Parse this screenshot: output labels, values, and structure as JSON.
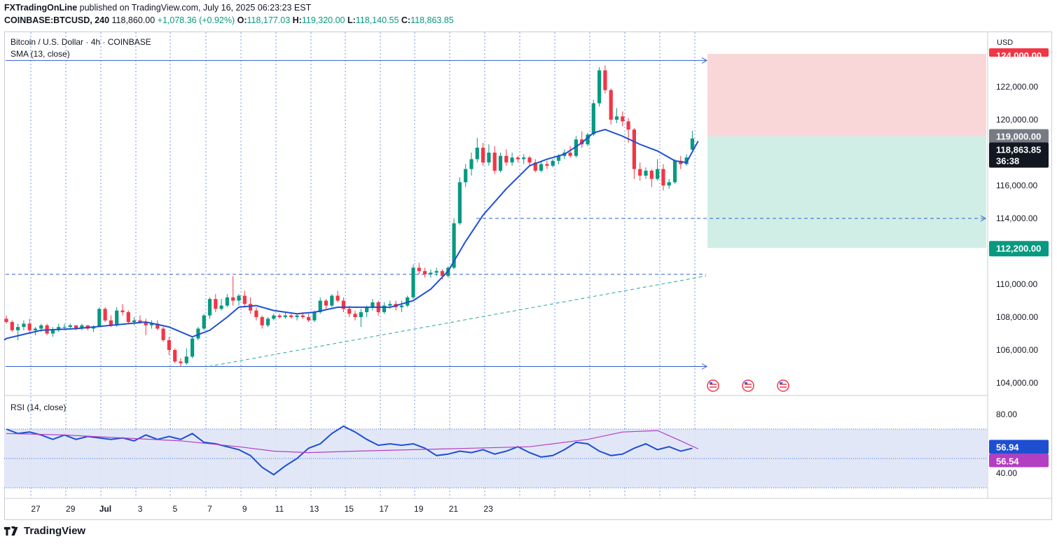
{
  "header": {
    "publisher": "FXTradingOnLine",
    "published_text": "published on TradingView.com, July 16, 2025 06:23:23 EST",
    "symbol": "COINBASE:BTCUSD, 240",
    "last": "118,860.00",
    "change": "+1,078.36 (+0.92%)",
    "o_label": "O:",
    "o": "118,177.03",
    "h_label": "H:",
    "h": "119,320.00",
    "l_label": "L:",
    "l": "118,140.55",
    "c_label": "C:",
    "c": "118,863.85"
  },
  "legend": {
    "symbol_title": "Bitcoin / U.S. Dollar · 4h · COINBASE",
    "sma": "SMA (13, close)",
    "rsi": "RSI (14, close)"
  },
  "footer": {
    "brand": "TradingView"
  },
  "chart_data": {
    "type": "candlestick",
    "currency": "USD",
    "x_ticks": [
      "27",
      "29",
      "Jul",
      "3",
      "5",
      "7",
      "9",
      "11",
      "13",
      "15",
      "17",
      "19",
      "21",
      "23"
    ],
    "price_ticks": [
      "104,000.00",
      "106,000.00",
      "108,000.00",
      "110,000.00",
      "112,000.00",
      "114,000.00",
      "116,000.00",
      "118,000.00",
      "120,000.00",
      "122,000.00",
      "124,000.00"
    ],
    "rsi_ticks": [
      "40.00",
      "60.00",
      "80.00"
    ],
    "price_range": [
      103400,
      124800
    ],
    "rsi_range": [
      30,
      85
    ],
    "rsi_band": [
      30,
      70
    ],
    "rsi_mid": 50,
    "badges": {
      "stop": "124,000.00",
      "entry": "119,000.00",
      "current": "118,863.85",
      "countdown": "36:38",
      "target": "112,200.00",
      "rsi_value": "56.94",
      "rsi_ma_value": "56.54"
    },
    "levels": {
      "stop": 124000,
      "entry": 119000,
      "target": 112200,
      "resistance_high": 123600,
      "dashed_114k": 114000,
      "dashed_110k": 110600,
      "support": 105000
    },
    "trendline": {
      "from": 105000,
      "to": 110500
    },
    "candles": [
      [
        107.9,
        108.1,
        107.6,
        107.7
      ],
      [
        107.7,
        107.8,
        107.1,
        107.2
      ],
      [
        107.2,
        107.6,
        106.6,
        107.4
      ],
      [
        107.4,
        107.8,
        107.2,
        107.6
      ],
      [
        107.6,
        107.9,
        107.0,
        107.2
      ],
      [
        107.2,
        107.4,
        106.9,
        107.3
      ],
      [
        107.3,
        107.6,
        107.1,
        107.5
      ],
      [
        107.5,
        107.6,
        106.9,
        107.0
      ],
      [
        107.0,
        107.4,
        106.8,
        107.2
      ],
      [
        107.2,
        107.6,
        107.1,
        107.4
      ],
      [
        107.4,
        107.6,
        107.2,
        107.4
      ],
      [
        107.4,
        107.6,
        107.3,
        107.5
      ],
      [
        107.5,
        107.5,
        107.2,
        107.3
      ],
      [
        107.3,
        107.6,
        107.2,
        107.5
      ],
      [
        107.5,
        107.5,
        107.2,
        107.3
      ],
      [
        107.3,
        107.5,
        107.1,
        107.4
      ],
      [
        107.4,
        108.6,
        107.4,
        108.5
      ],
      [
        108.5,
        108.6,
        107.7,
        107.8
      ],
      [
        107.8,
        108.1,
        107.4,
        107.5
      ],
      [
        107.5,
        108.6,
        107.4,
        108.4
      ],
      [
        108.4,
        108.8,
        108.1,
        108.3
      ],
      [
        108.3,
        108.4,
        107.6,
        107.7
      ],
      [
        107.7,
        108.0,
        107.5,
        107.8
      ],
      [
        107.8,
        108.1,
        107.6,
        107.7
      ],
      [
        107.7,
        107.9,
        106.9,
        107.5
      ],
      [
        107.5,
        107.8,
        107.3,
        107.6
      ],
      [
        107.6,
        107.8,
        107.2,
        107.3
      ],
      [
        107.3,
        107.4,
        106.5,
        106.6
      ],
      [
        106.6,
        106.8,
        105.7,
        106.0
      ],
      [
        106.0,
        106.1,
        105.2,
        105.3
      ],
      [
        105.3,
        105.5,
        105.0,
        105.2
      ],
      [
        105.2,
        106.1,
        105.1,
        105.6
      ],
      [
        105.6,
        106.8,
        105.5,
        106.7
      ],
      [
        106.7,
        107.4,
        106.6,
        107.3
      ],
      [
        107.3,
        108.2,
        107.2,
        108.1
      ],
      [
        108.1,
        109.2,
        107.9,
        109.1
      ],
      [
        109.1,
        109.4,
        108.3,
        108.5
      ],
      [
        108.5,
        109.1,
        108.4,
        108.7
      ],
      [
        108.7,
        109.4,
        108.6,
        109.2
      ],
      [
        109.2,
        110.5,
        108.7,
        109.0
      ],
      [
        109.0,
        109.4,
        108.7,
        109.3
      ],
      [
        109.3,
        109.6,
        108.6,
        108.8
      ],
      [
        108.8,
        109.2,
        108.2,
        108.4
      ],
      [
        108.4,
        108.6,
        107.8,
        108.0
      ],
      [
        108.0,
        108.1,
        107.3,
        107.5
      ],
      [
        107.5,
        108.0,
        107.4,
        107.9
      ],
      [
        107.9,
        108.2,
        107.8,
        108.1
      ],
      [
        108.1,
        108.2,
        107.9,
        108.0
      ],
      [
        108.0,
        108.3,
        107.9,
        108.1
      ],
      [
        108.1,
        108.2,
        107.9,
        108.0
      ],
      [
        108.0,
        108.2,
        107.8,
        108.1
      ],
      [
        108.1,
        108.3,
        107.9,
        108.0
      ],
      [
        108.0,
        108.2,
        107.7,
        107.8
      ],
      [
        107.8,
        108.4,
        107.7,
        108.3
      ],
      [
        108.3,
        109.2,
        108.2,
        109.0
      ],
      [
        109.0,
        109.1,
        108.5,
        108.7
      ],
      [
        108.7,
        109.4,
        108.6,
        109.3
      ],
      [
        109.3,
        109.6,
        108.9,
        109.0
      ],
      [
        109.0,
        109.2,
        108.3,
        108.5
      ],
      [
        108.5,
        108.7,
        108.0,
        108.2
      ],
      [
        108.2,
        108.4,
        107.8,
        108.0
      ],
      [
        108.0,
        108.5,
        107.4,
        108.3
      ],
      [
        108.3,
        108.7,
        108.0,
        108.6
      ],
      [
        108.6,
        109.1,
        108.4,
        108.9
      ],
      [
        108.9,
        109.0,
        108.1,
        108.3
      ],
      [
        108.3,
        108.9,
        108.2,
        108.7
      ],
      [
        108.7,
        109.0,
        108.5,
        108.8
      ],
      [
        108.8,
        109.0,
        108.4,
        108.6
      ],
      [
        108.6,
        109.0,
        108.3,
        108.7
      ],
      [
        108.7,
        109.3,
        108.6,
        109.2
      ],
      [
        109.2,
        111.2,
        109.1,
        111.0
      ],
      [
        111.0,
        111.3,
        110.6,
        110.8
      ],
      [
        110.8,
        111.0,
        110.4,
        110.6
      ],
      [
        110.6,
        110.9,
        110.4,
        110.7
      ],
      [
        110.7,
        111.0,
        110.5,
        110.8
      ],
      [
        110.8,
        110.9,
        110.3,
        110.5
      ],
      [
        110.5,
        111.1,
        110.4,
        111.0
      ],
      [
        111.0,
        114.0,
        110.9,
        113.7
      ],
      [
        113.7,
        116.5,
        113.6,
        116.2
      ],
      [
        116.2,
        117.3,
        115.9,
        117.0
      ],
      [
        117.0,
        118.0,
        116.6,
        117.6
      ],
      [
        117.6,
        118.9,
        117.4,
        118.3
      ],
      [
        118.3,
        118.6,
        117.2,
        117.4
      ],
      [
        117.4,
        118.5,
        117.2,
        118.0
      ],
      [
        118.0,
        118.4,
        116.7,
        116.9
      ],
      [
        116.9,
        118.0,
        116.8,
        117.8
      ],
      [
        117.8,
        118.2,
        117.2,
        117.4
      ],
      [
        117.4,
        118.0,
        117.2,
        117.7
      ],
      [
        117.7,
        117.8,
        117.4,
        117.6
      ],
      [
        117.6,
        117.9,
        117.3,
        117.7
      ],
      [
        117.7,
        117.8,
        117.2,
        117.4
      ],
      [
        117.4,
        117.6,
        116.8,
        116.9
      ],
      [
        116.9,
        117.5,
        116.8,
        117.3
      ],
      [
        117.3,
        117.5,
        117.0,
        117.2
      ],
      [
        117.2,
        117.6,
        117.1,
        117.5
      ],
      [
        117.5,
        117.9,
        117.3,
        117.8
      ],
      [
        117.8,
        118.2,
        117.6,
        118.0
      ],
      [
        118.0,
        118.4,
        117.7,
        117.8
      ],
      [
        117.8,
        119.0,
        117.7,
        118.8
      ],
      [
        118.8,
        119.3,
        118.3,
        118.5
      ],
      [
        118.5,
        119.2,
        118.4,
        119.1
      ],
      [
        119.1,
        121.2,
        119.0,
        121.0
      ],
      [
        121.0,
        123.2,
        120.8,
        123.0
      ],
      [
        123.0,
        123.3,
        121.6,
        121.8
      ],
      [
        121.8,
        121.9,
        119.7,
        120.0
      ],
      [
        120.0,
        120.7,
        119.8,
        120.2
      ],
      [
        120.2,
        120.5,
        119.6,
        119.9
      ],
      [
        119.9,
        120.1,
        118.6,
        119.4
      ],
      [
        119.4,
        119.5,
        116.4,
        117.0
      ],
      [
        117.0,
        117.4,
        116.3,
        116.6
      ],
      [
        116.6,
        117.1,
        116.4,
        116.9
      ],
      [
        116.9,
        117.0,
        115.9,
        116.4
      ],
      [
        116.4,
        117.6,
        116.3,
        117.0
      ],
      [
        117.0,
        117.3,
        115.7,
        116.0
      ],
      [
        116.0,
        116.4,
        115.8,
        116.2
      ],
      [
        116.2,
        117.6,
        116.1,
        117.5
      ],
      [
        117.5,
        117.8,
        117.0,
        117.3
      ],
      [
        117.3,
        117.9,
        117.2,
        117.7
      ],
      [
        118.18,
        119.32,
        118.14,
        118.86
      ]
    ],
    "sma13": [
      [
        0,
        106.7
      ],
      [
        6,
        107.2
      ],
      [
        12,
        107.3
      ],
      [
        18,
        107.5
      ],
      [
        24,
        107.7
      ],
      [
        28,
        107.4
      ],
      [
        32,
        106.8
      ],
      [
        35,
        107.2
      ],
      [
        38,
        108.0
      ],
      [
        40,
        108.6
      ],
      [
        43,
        108.7
      ],
      [
        46,
        108.4
      ],
      [
        50,
        108.2
      ],
      [
        53,
        108.3
      ],
      [
        57,
        108.6
      ],
      [
        62,
        108.6
      ],
      [
        66,
        108.6
      ],
      [
        70,
        109.0
      ],
      [
        73,
        109.7
      ],
      [
        76,
        110.8
      ],
      [
        79,
        112.6
      ],
      [
        82,
        114.2
      ],
      [
        86,
        115.8
      ],
      [
        90,
        117.2
      ],
      [
        93,
        117.6
      ],
      [
        96,
        117.9
      ],
      [
        99,
        118.6
      ],
      [
        101,
        119.2
      ],
      [
        103,
        119.4
      ],
      [
        106,
        119.0
      ],
      [
        109,
        118.5
      ],
      [
        112,
        118.1
      ],
      [
        115,
        117.5
      ],
      [
        117,
        117.4
      ],
      [
        119,
        118.7
      ]
    ],
    "rsi": [
      [
        0,
        70
      ],
      [
        2,
        67
      ],
      [
        4,
        68
      ],
      [
        6,
        66
      ],
      [
        8,
        63
      ],
      [
        10,
        66
      ],
      [
        12,
        63
      ],
      [
        14,
        65
      ],
      [
        16,
        64
      ],
      [
        18,
        63
      ],
      [
        20,
        64
      ],
      [
        22,
        62
      ],
      [
        24,
        66
      ],
      [
        26,
        63
      ],
      [
        28,
        65
      ],
      [
        30,
        63
      ],
      [
        32,
        67
      ],
      [
        34,
        61
      ],
      [
        36,
        60
      ],
      [
        38,
        58
      ],
      [
        40,
        56
      ],
      [
        42,
        52
      ],
      [
        44,
        44
      ],
      [
        46,
        39
      ],
      [
        48,
        45
      ],
      [
        50,
        50
      ],
      [
        52,
        57
      ],
      [
        54,
        60
      ],
      [
        56,
        67
      ],
      [
        58,
        72
      ],
      [
        60,
        68
      ],
      [
        62,
        63
      ],
      [
        64,
        59
      ],
      [
        66,
        60
      ],
      [
        68,
        59
      ],
      [
        70,
        60
      ],
      [
        72,
        57
      ],
      [
        74,
        52
      ],
      [
        76,
        53
      ],
      [
        78,
        55
      ],
      [
        80,
        54
      ],
      [
        82,
        56
      ],
      [
        84,
        53
      ],
      [
        86,
        55
      ],
      [
        88,
        58
      ],
      [
        90,
        54
      ],
      [
        92,
        51
      ],
      [
        94,
        52
      ],
      [
        96,
        56
      ],
      [
        98,
        61
      ],
      [
        100,
        60
      ],
      [
        102,
        55
      ],
      [
        104,
        52
      ],
      [
        106,
        53
      ],
      [
        108,
        57
      ],
      [
        110,
        60
      ],
      [
        112,
        56
      ],
      [
        114,
        58
      ],
      [
        116,
        55
      ],
      [
        118,
        56.94
      ]
    ],
    "rsi_ma": [
      [
        0,
        67
      ],
      [
        10,
        66
      ],
      [
        20,
        64
      ],
      [
        30,
        62
      ],
      [
        40,
        58
      ],
      [
        46,
        55
      ],
      [
        52,
        54
      ],
      [
        60,
        55
      ],
      [
        70,
        56
      ],
      [
        80,
        57
      ],
      [
        90,
        58
      ],
      [
        100,
        63
      ],
      [
        106,
        68
      ],
      [
        112,
        69
      ],
      [
        116,
        62
      ],
      [
        119,
        56.54
      ]
    ]
  }
}
